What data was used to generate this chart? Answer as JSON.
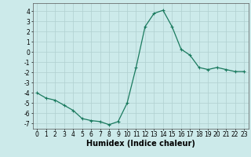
{
  "x": [
    0,
    1,
    2,
    3,
    4,
    5,
    6,
    7,
    8,
    9,
    10,
    11,
    12,
    13,
    14,
    15,
    16,
    17,
    18,
    19,
    20,
    21,
    22,
    23
  ],
  "y": [
    -4.0,
    -4.5,
    -4.7,
    -5.2,
    -5.7,
    -6.5,
    -6.7,
    -6.8,
    -7.1,
    -6.8,
    -5.0,
    -1.5,
    2.5,
    3.8,
    4.1,
    2.5,
    0.3,
    -0.3,
    -1.5,
    -1.7,
    -1.5,
    -1.7,
    -1.9,
    -1.9
  ],
  "line_color": "#1a7a5e",
  "marker": "+",
  "marker_size": 3,
  "linewidth": 0.9,
  "xlabel": "Humidex (Indice chaleur)",
  "xlabel_fontsize": 7,
  "yticks": [
    -7,
    -6,
    -5,
    -4,
    -3,
    -2,
    -1,
    0,
    1,
    2,
    3,
    4
  ],
  "xticks": [
    0,
    1,
    2,
    3,
    4,
    5,
    6,
    7,
    8,
    9,
    10,
    11,
    12,
    13,
    14,
    15,
    16,
    17,
    18,
    19,
    20,
    21,
    22,
    23
  ],
  "ylim": [
    -7.5,
    4.8
  ],
  "xlim": [
    -0.5,
    23.5
  ],
  "background_color": "#cceaea",
  "grid_color": "#b0d0d0",
  "tick_fontsize": 5.5
}
